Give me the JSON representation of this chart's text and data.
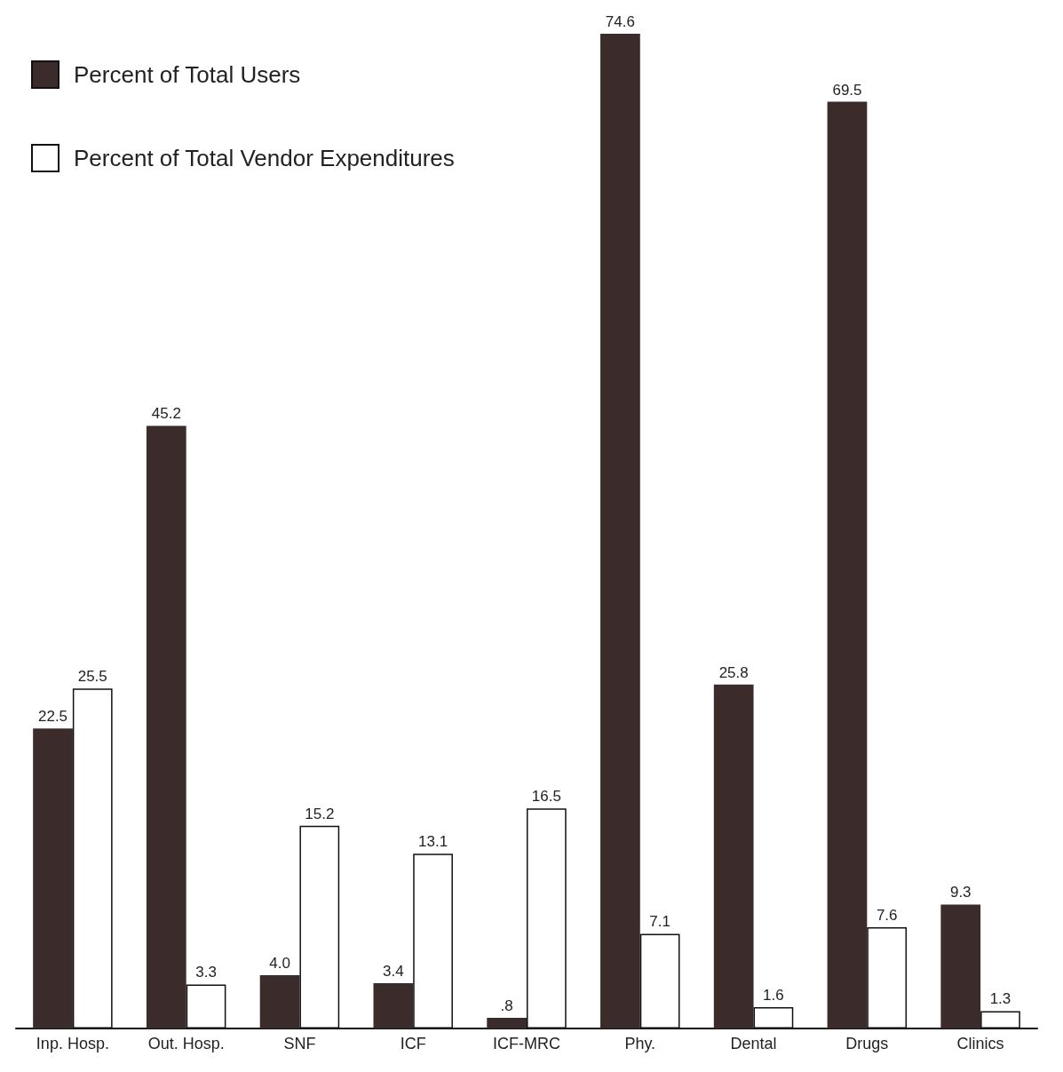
{
  "chart_data": {
    "type": "bar",
    "categories": [
      "Inp. Hosp.",
      "Out. Hosp.",
      "SNF",
      "ICF",
      "ICF-MRC",
      "Phy.",
      "Dental",
      "Drugs",
      "Clinics"
    ],
    "series": [
      {
        "name": "Percent of Total Users",
        "color": "#3b2b2b",
        "values": [
          22.5,
          45.2,
          4.0,
          3.4,
          0.8,
          74.6,
          25.8,
          69.5,
          9.3
        ],
        "value_labels": [
          "22.5",
          "45.2",
          "4.0",
          "3.4",
          ".8",
          "74.6",
          "25.8",
          "69.5",
          "9.3"
        ]
      },
      {
        "name": "Percent of Total Vendor Expenditures",
        "color": "#ffffff",
        "values": [
          25.5,
          3.3,
          15.2,
          13.1,
          16.5,
          7.1,
          1.6,
          7.6,
          1.3
        ],
        "value_labels": [
          "25.5",
          "3.3",
          "15.2",
          "13.1",
          "16.5",
          "7.1",
          "1.6",
          "7.6",
          "1.3"
        ]
      }
    ],
    "legend": "top left"
  }
}
